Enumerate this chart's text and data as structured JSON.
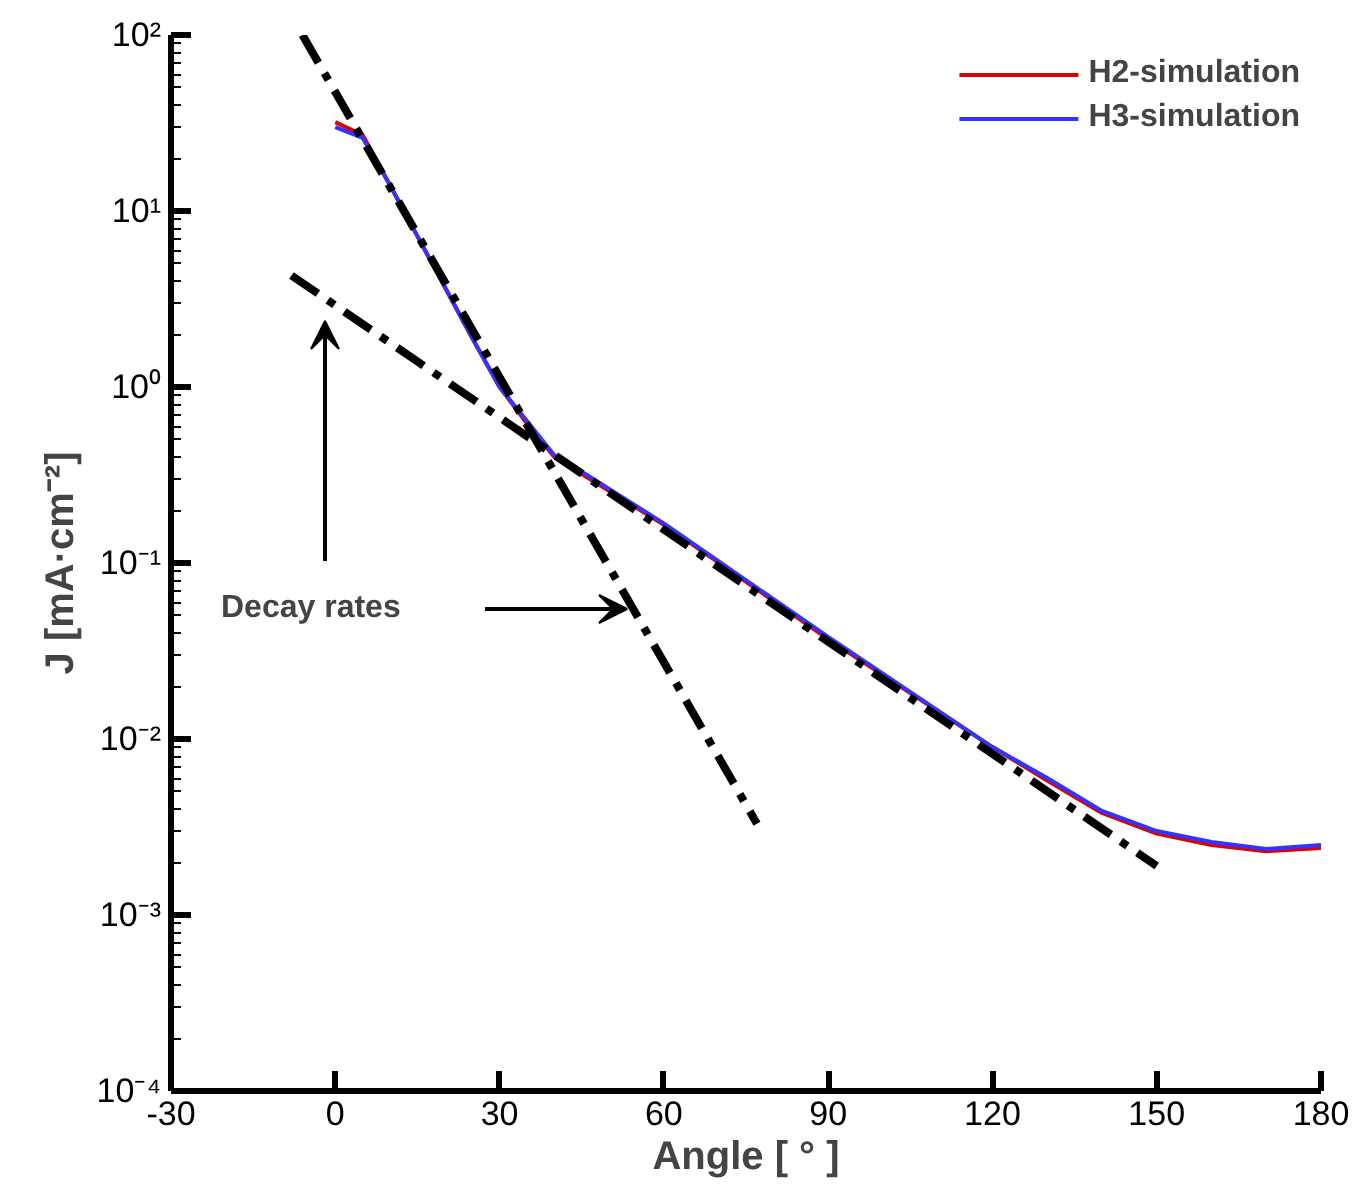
{
  "chart_data": {
    "type": "line",
    "xlabel": "Angle [ ° ]",
    "ylabel": "J [mA·cm⁻²]",
    "log": "y",
    "xlim": [
      -30,
      180
    ],
    "xticks": [
      -30,
      0,
      30,
      60,
      90,
      120,
      150,
      180
    ],
    "ylim": [
      0.0001,
      100
    ],
    "yticks": [
      {
        "value": 0.0001,
        "label": "10⁻⁴"
      },
      {
        "value": 0.001,
        "label": "10⁻³"
      },
      {
        "value": 0.01,
        "label": "10⁻²"
      },
      {
        "value": 0.1,
        "label": "10⁻¹"
      },
      {
        "value": 1,
        "label": "10⁰"
      },
      {
        "value": 10,
        "label": "10¹"
      },
      {
        "value": 100,
        "label": "10²"
      }
    ],
    "grid": false,
    "legend": "top right",
    "marker": "none",
    "x": [
      0,
      5,
      10,
      15,
      20,
      25,
      30,
      35,
      40,
      45,
      60,
      90,
      120,
      130,
      140,
      150,
      160,
      170,
      180
    ],
    "series": [
      {
        "name": "H2-simulation",
        "color": "#e00000",
        "values": [
          32,
          27,
          14,
          7.2,
          3.7,
          1.9,
          1.0,
          0.62,
          0.4,
          0.32,
          0.165,
          0.037,
          0.009,
          0.0058,
          0.0038,
          0.0029,
          0.0025,
          0.0023,
          0.0024
        ]
      },
      {
        "name": "H3-simulation",
        "color": "#3333ff",
        "values": [
          30,
          26,
          14,
          7.2,
          3.7,
          1.9,
          1.0,
          0.64,
          0.41,
          0.33,
          0.168,
          0.038,
          0.009,
          0.006,
          0.0039,
          0.003,
          0.0026,
          0.00237,
          0.0025
        ]
      },
      {
        "color": "#000000",
        "line_style": "dashdot",
        "x": [
          -6,
          77
        ],
        "values": [
          100,
          0.0033
        ]
      },
      {
        "color": "#000000",
        "line_style": "dashdot",
        "x": [
          -8,
          150
        ],
        "values": [
          4.3,
          0.0019
        ]
      }
    ],
    "annotations": [
      "Decay rates"
    ]
  }
}
